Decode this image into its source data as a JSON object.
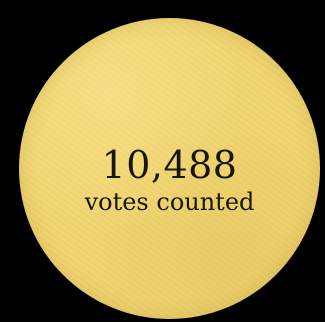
{
  "badge": {
    "count": "10,488",
    "caption": "votes counted",
    "fill_color": "#f1d56f",
    "background_color": "#000000"
  }
}
